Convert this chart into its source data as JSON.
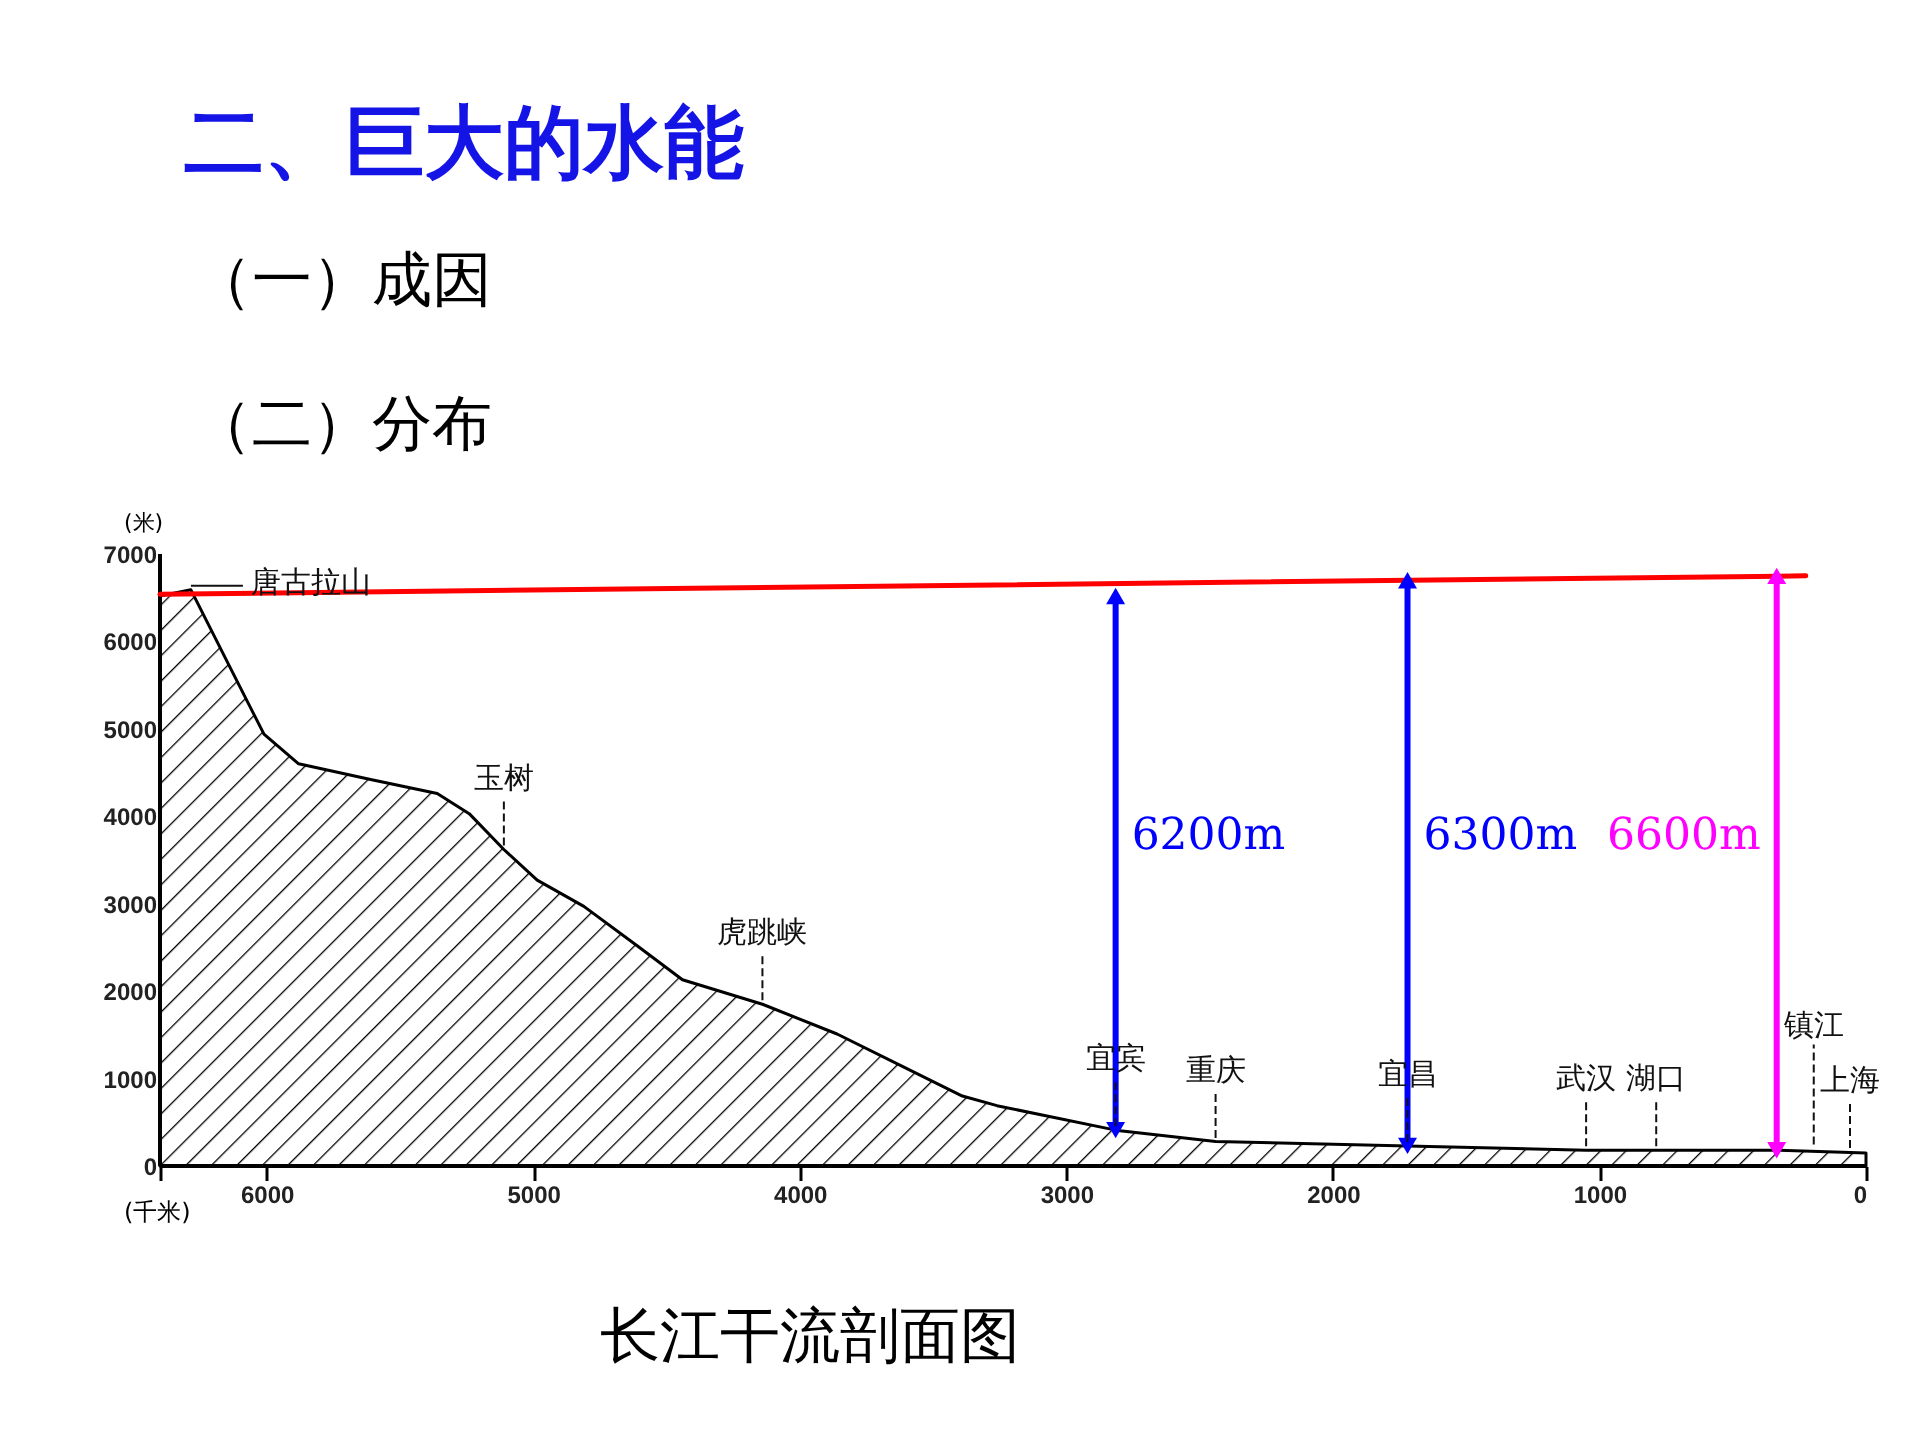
{
  "chart_data": {
    "type": "area",
    "title": "二、巨大的水能",
    "subtitle": "（一）成因",
    "xlabel": "(千米)",
    "ylabel": "(米)",
    "xlim": [
      6400,
      0
    ],
    "ylim": [
      0,
      7000
    ],
    "xticks": [
      {
        "value": 6400,
        "label": null
      },
      6000,
      5000,
      4000,
      3000,
      2000,
      1000,
      0
    ],
    "yticks": [
      0,
      1000,
      2000,
      3000,
      4000,
      5000,
      6000,
      7000
    ],
    "series": [
      {
        "color": "#000000",
        "x": [
          6400,
          6284,
          6140,
          6010,
          5880,
          5610,
          5360,
          5240,
          5110,
          4985,
          4810,
          4610,
          4440,
          4140,
          3860,
          3615,
          3390,
          3260,
          2815,
          2440,
          1720,
          1050,
          325,
          0
        ],
        "values": [
          6520,
          6590,
          5720,
          4940,
          4600,
          4420,
          4260,
          4030,
          3620,
          3270,
          2970,
          2520,
          2130,
          1850,
          1510,
          1140,
          800,
          690,
          410,
          280,
          230,
          180,
          180,
          150
        ]
      },
      {
        "type": "line",
        "color": "#ff0000",
        "x": [
          6400,
          226
        ],
        "values": [
          6540,
          6750
        ]
      },
      {
        "type": "line",
        "name": "6200m",
        "color": "#0000ff",
        "marker": "triangle",
        "x": [
          2815,
          2815
        ],
        "values": [
          410,
          6520
        ]
      },
      {
        "type": "line",
        "name": "6300m",
        "color": "#0000ff",
        "marker": "triangle",
        "x": [
          1720,
          1720
        ],
        "values": [
          230,
          6700
        ]
      },
      {
        "type": "line",
        "name": "6600m",
        "color": "#ff00ff",
        "marker": "triangle",
        "x": [
          335,
          335
        ],
        "values": [
          180,
          6750
        ]
      }
    ],
    "annotations": [
      {
        "text": "唐古拉山",
        "x": 6284,
        "y": 6590
      },
      {
        "text": "玉树",
        "x": 5110,
        "y": 3620
      },
      {
        "text": "虎跳峡",
        "x": 4140,
        "y": 1850
      },
      {
        "text": "宜宾",
        "x": 2815,
        "y": 410
      },
      {
        "text": "重庆",
        "x": 2440,
        "y": 275
      },
      {
        "text": "宜昌",
        "x": 1720,
        "y": 230
      },
      {
        "text": "武汉",
        "x": 1050,
        "y": 180
      },
      {
        "text": "湖口",
        "x": 787,
        "y": 180
      },
      {
        "text": "镇江",
        "x": 196,
        "y": 200
      },
      {
        "text": "上海",
        "x": 60,
        "y": 160
      },
      "（二）分布",
      "长江干流剖面图"
    ]
  }
}
